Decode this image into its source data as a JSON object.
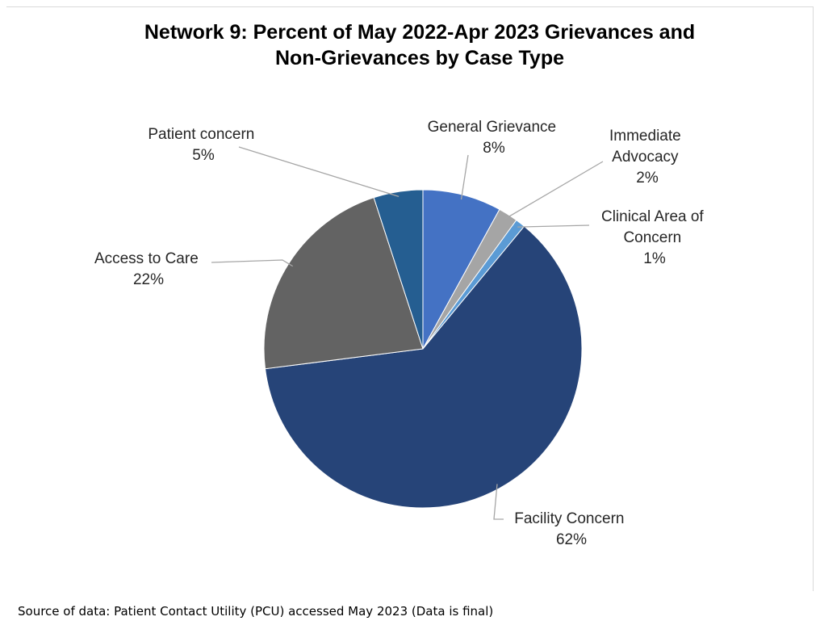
{
  "chart_data": {
    "type": "pie",
    "title_lines": [
      "Network 9:  Percent of May 2022-Apr 2023 Grievances and",
      "Non-Grievances by Case Type"
    ],
    "start_angle_deg": 0,
    "direction": "clockwise",
    "slices": [
      {
        "name": "General Grievance",
        "value": 8,
        "label": "8%",
        "color": "#4472c4"
      },
      {
        "name": "Immediate Advocacy",
        "value": 2,
        "label": "2%",
        "color": "#a5a5a5"
      },
      {
        "name": "Clinical Area of Concern",
        "value": 1,
        "label": "1%",
        "color": "#5b9bd5"
      },
      {
        "name": "Facility Concern",
        "value": 62,
        "label": "62%",
        "color": "#264478"
      },
      {
        "name": "Access to Care",
        "value": 22,
        "label": "22%",
        "color": "#636363"
      },
      {
        "name": "Patient concern",
        "value": 5,
        "label": "5%",
        "color": "#255e91"
      }
    ],
    "labels": {
      "general_grievance": [
        "General Grievance",
        "8%"
      ],
      "immediate_advocacy": [
        "Immediate",
        "Advocacy",
        "2%"
      ],
      "clinical_area": [
        "Clinical Area of",
        "Concern",
        "1%"
      ],
      "facility_concern": [
        "Facility Concern",
        "62%"
      ],
      "access_to_care": [
        "Access to Care",
        "22%"
      ],
      "patient_concern": [
        "Patient concern",
        "5%"
      ]
    },
    "legend": "none"
  },
  "source_note": "Source of data:  Patient Contact Utility (PCU) accessed May 2023 (Data is final)"
}
